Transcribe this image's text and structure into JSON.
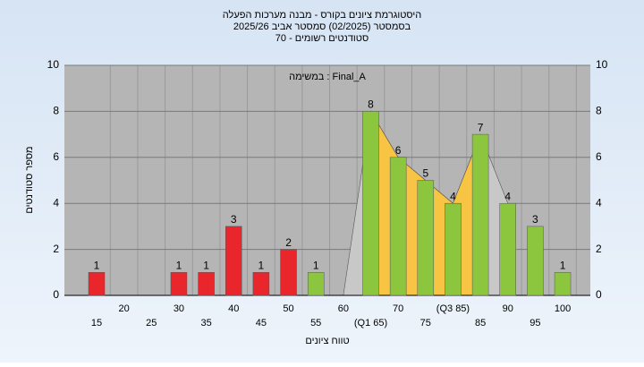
{
  "chart_data": {
    "type": "bar",
    "title": "היסטוגרמת ציונים בקורס - מבנה מערכות הפעלה",
    "subtitle": "בסמסטר  (02/2025)  סמסטר אביב 2025/26",
    "subtitle2": "סטודנטים רשומים - 70",
    "annotation": "במשימה : Final_A",
    "x_label": "טווח ציונים",
    "y_label": "מספר סטודנטים",
    "categories": [
      "15",
      "20",
      "25",
      "30",
      "35",
      "40",
      "45",
      "50",
      "55",
      "60",
      "(Q1 65)",
      "70",
      "75",
      "(Q3 85)",
      "85",
      "90",
      "95",
      "100"
    ],
    "values": [
      1,
      0,
      0,
      1,
      1,
      3,
      1,
      2,
      1,
      0,
      8,
      6,
      5,
      4,
      7,
      4,
      3,
      1
    ],
    "colors": [
      "#e8262b",
      "#e8262b",
      "#e8262b",
      "#e8262b",
      "#e8262b",
      "#e8262b",
      "#e8262b",
      "#e8262b",
      "#8cc63f",
      "#8cc63f",
      "#8cc63f",
      "#8cc63f",
      "#8cc63f",
      "#8cc63f",
      "#8cc63f",
      "#8cc63f",
      "#8cc63f",
      "#8cc63f"
    ],
    "ylim": [
      0,
      10
    ],
    "yticks": [
      0,
      2,
      4,
      6,
      8,
      10
    ],
    "grid": true
  }
}
